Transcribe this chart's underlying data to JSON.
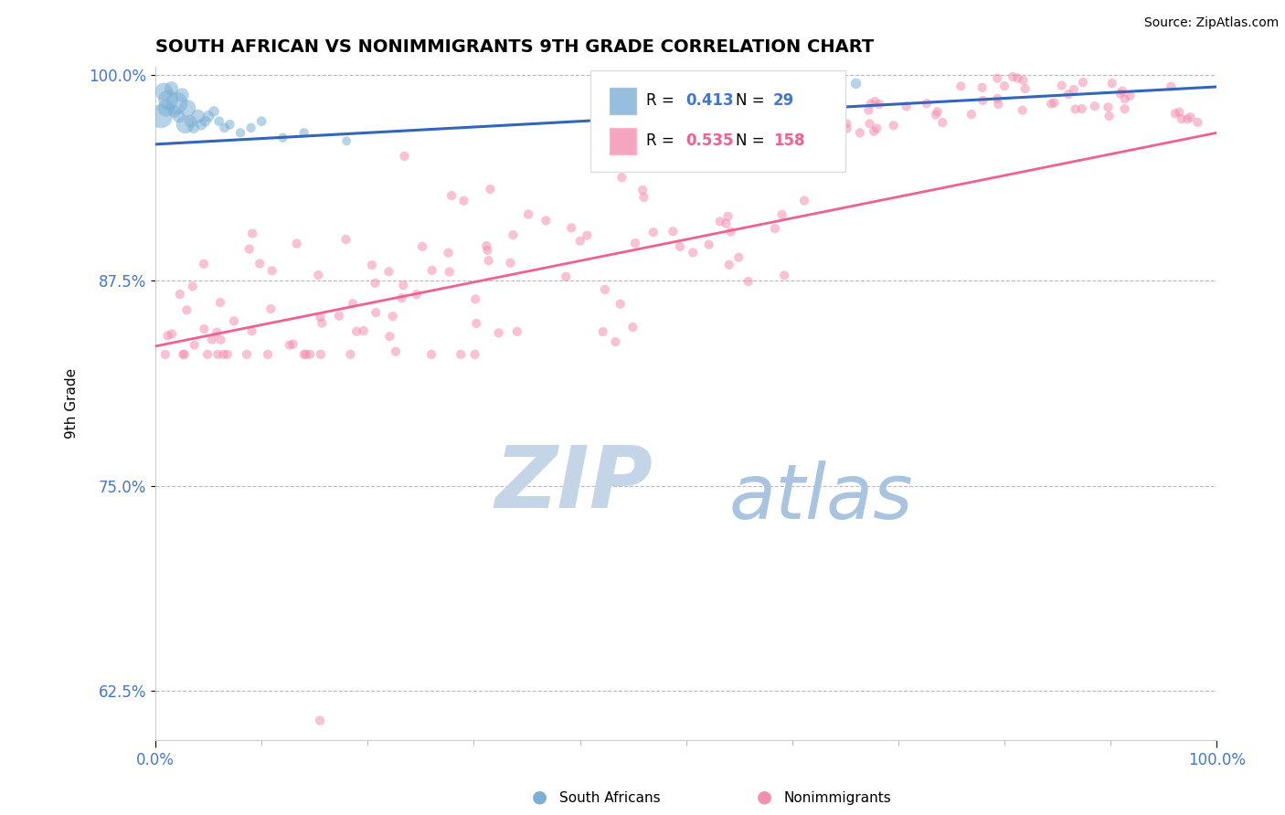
{
  "title": "SOUTH AFRICAN VS NONIMMIGRANTS 9TH GRADE CORRELATION CHART",
  "source": "Source: ZipAtlas.com",
  "ylabel": "9th Grade",
  "xlim": [
    0.0,
    1.0
  ],
  "ylim": [
    0.595,
    1.005
  ],
  "yticks": [
    0.625,
    0.75,
    0.875,
    1.0
  ],
  "ytick_labels": [
    "62.5%",
    "75.0%",
    "87.5%",
    "100.0%"
  ],
  "blue_R": 0.413,
  "blue_N": 29,
  "pink_R": 0.535,
  "pink_N": 158,
  "blue_color": "#7BAFD4",
  "pink_color": "#F48FB1",
  "blue_line_color": "#3366BB",
  "pink_line_color": "#F06090",
  "watermark_ZIP": "ZIP",
  "watermark_atlas": "atlas",
  "watermark_color_ZIP": "#C5D5E8",
  "watermark_color_atlas": "#A8C4E0",
  "background_color": "#FFFFFF",
  "grid_color": "#BBBBBB",
  "blue_trend_y_start": 0.958,
  "blue_trend_y_end": 0.993,
  "pink_trend_y_start": 0.835,
  "pink_trend_y_end": 0.965,
  "tick_label_color": "#4477CC",
  "title_fontsize": 14,
  "source_fontsize": 10
}
